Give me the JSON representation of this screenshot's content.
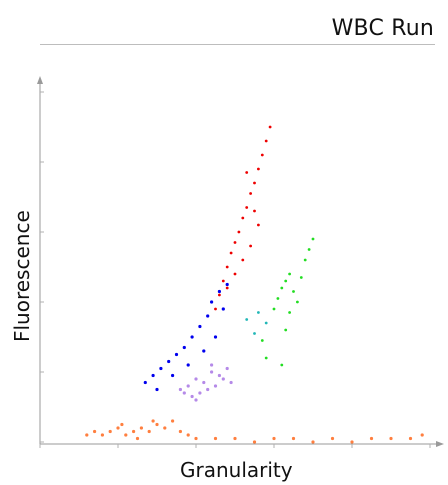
{
  "header": {
    "title": "WBC Run"
  },
  "chart_data": {
    "type": "scatter",
    "title": "WBC Run",
    "xlabel": "Granularity",
    "ylabel": "Fluorescence",
    "xlim": [
      0,
      100
    ],
    "ylim": [
      0,
      100
    ],
    "grid": false,
    "legend": "none",
    "series": [
      {
        "color": "#ff7f3f",
        "points": [
          [
            14,
            3
          ],
          [
            16,
            2
          ],
          [
            18,
            3
          ],
          [
            20,
            4
          ],
          [
            22,
            2
          ],
          [
            24,
            3
          ],
          [
            26,
            4
          ],
          [
            28,
            3
          ],
          [
            30,
            5
          ],
          [
            32,
            4
          ],
          [
            34,
            6
          ],
          [
            25,
            1
          ],
          [
            12,
            2
          ],
          [
            36,
            3
          ],
          [
            38,
            2
          ],
          [
            40,
            1
          ],
          [
            45,
            1
          ],
          [
            50,
            1
          ],
          [
            55,
            0
          ],
          [
            60,
            1
          ],
          [
            65,
            1
          ],
          [
            70,
            0
          ],
          [
            75,
            1
          ],
          [
            80,
            0
          ],
          [
            85,
            1
          ],
          [
            90,
            1
          ],
          [
            95,
            1
          ],
          [
            98,
            2
          ],
          [
            21,
            5
          ],
          [
            29,
            6
          ]
        ]
      },
      {
        "color": "#b58ae8",
        "points": [
          [
            36,
            15
          ],
          [
            38,
            16
          ],
          [
            40,
            18
          ],
          [
            42,
            17
          ],
          [
            44,
            20
          ],
          [
            46,
            19
          ],
          [
            48,
            21
          ],
          [
            41,
            14
          ],
          [
            43,
            15
          ],
          [
            45,
            16
          ],
          [
            47,
            18
          ],
          [
            39,
            13
          ],
          [
            44,
            22
          ],
          [
            40,
            12
          ],
          [
            37,
            14
          ],
          [
            49,
            17
          ]
        ]
      },
      {
        "color": "#0000ee",
        "points": [
          [
            27,
            17
          ],
          [
            29,
            19
          ],
          [
            31,
            21
          ],
          [
            33,
            23
          ],
          [
            35,
            25
          ],
          [
            37,
            27
          ],
          [
            39,
            30
          ],
          [
            41,
            33
          ],
          [
            43,
            36
          ],
          [
            44,
            40
          ],
          [
            46,
            43
          ],
          [
            48,
            45
          ],
          [
            30,
            15
          ],
          [
            34,
            19
          ],
          [
            38,
            22
          ],
          [
            42,
            26
          ],
          [
            45,
            30
          ],
          [
            47,
            38
          ]
        ]
      },
      {
        "color": "#ee0000",
        "points": [
          [
            45,
            38
          ],
          [
            46,
            42
          ],
          [
            47,
            46
          ],
          [
            48,
            50
          ],
          [
            49,
            54
          ],
          [
            50,
            57
          ],
          [
            51,
            60
          ],
          [
            52,
            64
          ],
          [
            53,
            67
          ],
          [
            54,
            71
          ],
          [
            55,
            74
          ],
          [
            56,
            78
          ],
          [
            57,
            82
          ],
          [
            58,
            86
          ],
          [
            59,
            90
          ],
          [
            48,
            44
          ],
          [
            50,
            48
          ],
          [
            52,
            52
          ],
          [
            54,
            56
          ],
          [
            56,
            62
          ],
          [
            53,
            77
          ],
          [
            55,
            66
          ]
        ]
      },
      {
        "color": "#22dd22",
        "points": [
          [
            60,
            38
          ],
          [
            61,
            41
          ],
          [
            62,
            44
          ],
          [
            63,
            46
          ],
          [
            64,
            48
          ],
          [
            65,
            43
          ],
          [
            66,
            40
          ],
          [
            67,
            47
          ],
          [
            68,
            52
          ],
          [
            69,
            55
          ],
          [
            64,
            37
          ],
          [
            63,
            32
          ],
          [
            57,
            29
          ],
          [
            58,
            24
          ],
          [
            62,
            22
          ],
          [
            70,
            58
          ]
        ]
      },
      {
        "color": "#22b7b7",
        "points": [
          [
            53,
            35
          ],
          [
            55,
            31
          ],
          [
            56,
            37
          ],
          [
            58,
            34
          ]
        ]
      }
    ]
  }
}
